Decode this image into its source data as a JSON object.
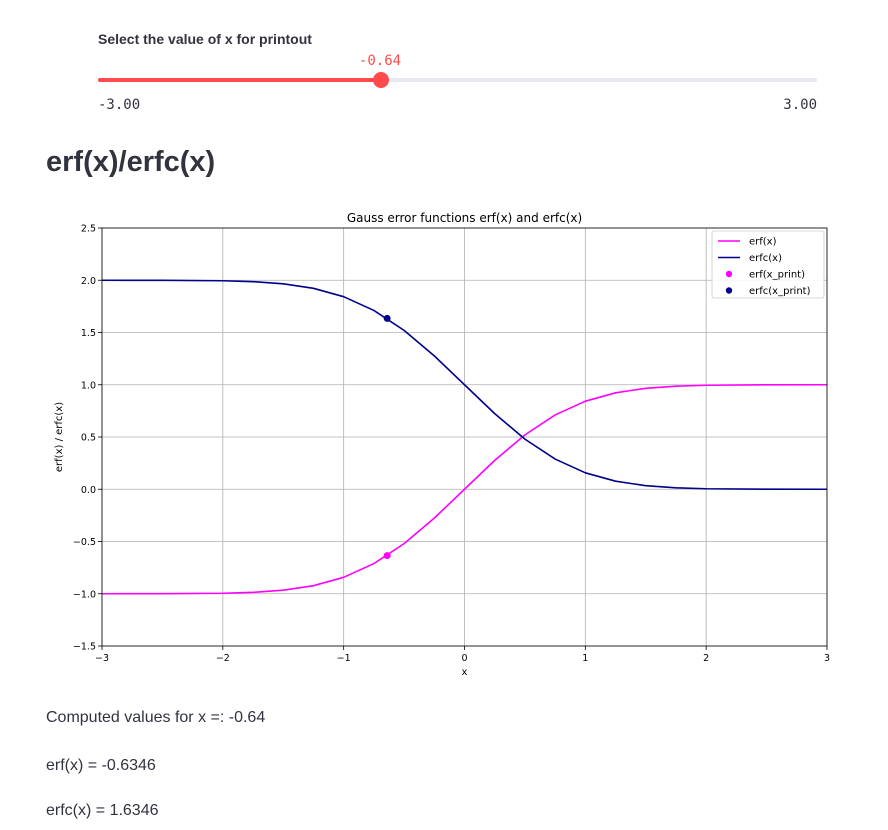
{
  "slider": {
    "label": "Select the value of x for printout",
    "value": -0.64,
    "value_text": "-0.64",
    "min": -3.0,
    "max": 3.0,
    "min_text": "-3.00",
    "max_text": "3.00",
    "accent_color": "#ff4b4b",
    "track_color": "#e9eaf0"
  },
  "section_title": "erf(x)/erfc(x)",
  "chart_data": {
    "type": "line",
    "title": "Gauss error functions erf(x) and erfc(x)",
    "xlabel": "x",
    "ylabel": "erf(x) / erfc(x)",
    "xlim": [
      -3,
      3
    ],
    "ylim": [
      -1.5,
      2.5
    ],
    "x_ticks": [
      -3,
      -2,
      -1,
      0,
      1,
      2,
      3
    ],
    "x_tick_labels": [
      "−3",
      "−2",
      "−1",
      "0",
      "1",
      "2",
      "3"
    ],
    "y_ticks": [
      -1.5,
      -1.0,
      -0.5,
      0.0,
      0.5,
      1.0,
      1.5,
      2.0,
      2.5
    ],
    "y_tick_labels": [
      "−1.5",
      "−1.0",
      "−0.5",
      "0.0",
      "0.5",
      "1.0",
      "1.5",
      "2.0",
      "2.5"
    ],
    "grid": true,
    "legend_position": "top-right",
    "x": [
      -3.0,
      -2.5,
      -2.0,
      -1.75,
      -1.5,
      -1.25,
      -1.0,
      -0.75,
      -0.5,
      -0.25,
      0.0,
      0.25,
      0.5,
      0.75,
      1.0,
      1.25,
      1.5,
      1.75,
      2.0,
      2.5,
      3.0
    ],
    "series": [
      {
        "name": "erf(x)",
        "color": "#ff00ff",
        "kind": "line",
        "values": [
          -1.0,
          -0.9996,
          -0.9953,
          -0.9867,
          -0.9661,
          -0.9229,
          -0.8427,
          -0.7112,
          -0.5205,
          -0.2763,
          0.0,
          0.2763,
          0.5205,
          0.7112,
          0.8427,
          0.9229,
          0.9661,
          0.9867,
          0.9953,
          0.9996,
          1.0
        ]
      },
      {
        "name": "erfc(x)",
        "color": "#00008b",
        "kind": "line",
        "values": [
          2.0,
          1.9996,
          1.9953,
          1.9867,
          1.9661,
          1.9229,
          1.8427,
          1.7112,
          1.5205,
          1.2763,
          1.0,
          0.7237,
          0.4795,
          0.2888,
          0.1573,
          0.0771,
          0.0339,
          0.0133,
          0.0047,
          0.0004,
          0.0
        ]
      },
      {
        "name": "erf(x_print)",
        "color": "#ff00ff",
        "kind": "point",
        "x": -0.64,
        "y": -0.6346
      },
      {
        "name": "erfc(x_print)",
        "color": "#00008b",
        "kind": "point",
        "x": -0.64,
        "y": 1.6346
      }
    ]
  },
  "output": {
    "computed_line": "Computed values for x =: -0.64",
    "erf_line": "erf(x) = -0.6346",
    "erfc_line": "erfc(x) = 1.6346"
  }
}
